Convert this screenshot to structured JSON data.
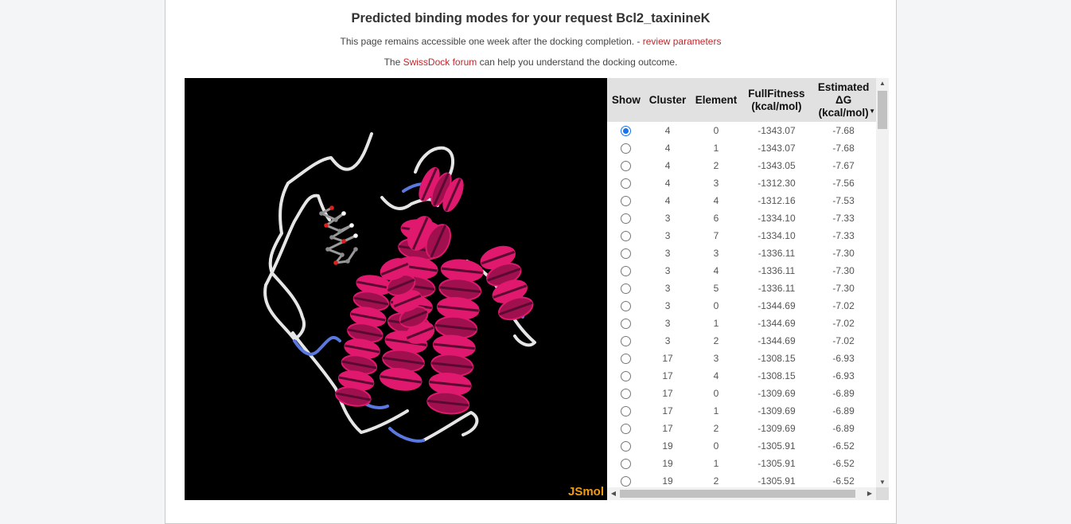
{
  "title": "Predicted binding modes for your request Bcl2_taxinineK",
  "info_line": {
    "text": "This page remains accessible one week after the docking completion. - ",
    "link": "review parameters"
  },
  "forum_line": {
    "prefix": "The ",
    "link": "SwissDock forum",
    "suffix": " can help you understand the docking outcome."
  },
  "viewer": {
    "label": "JSmol"
  },
  "table": {
    "headers": {
      "show": "Show",
      "cluster": "Cluster",
      "element": "Element",
      "fitness_line1": "FullFitness",
      "fitness_line2": "(kcal/mol)",
      "dg_line1": "Estimated",
      "dg_line2": "ΔG",
      "dg_line3": "(kcal/mol)"
    },
    "sort_indicator": "descending",
    "rows": [
      {
        "selected": true,
        "cluster": "4",
        "element": "0",
        "fitness": "-1343.07",
        "dg": "-7.68"
      },
      {
        "selected": false,
        "cluster": "4",
        "element": "1",
        "fitness": "-1343.07",
        "dg": "-7.68"
      },
      {
        "selected": false,
        "cluster": "4",
        "element": "2",
        "fitness": "-1343.05",
        "dg": "-7.67"
      },
      {
        "selected": false,
        "cluster": "4",
        "element": "3",
        "fitness": "-1312.30",
        "dg": "-7.56"
      },
      {
        "selected": false,
        "cluster": "4",
        "element": "4",
        "fitness": "-1312.16",
        "dg": "-7.53"
      },
      {
        "selected": false,
        "cluster": "3",
        "element": "6",
        "fitness": "-1334.10",
        "dg": "-7.33"
      },
      {
        "selected": false,
        "cluster": "3",
        "element": "7",
        "fitness": "-1334.10",
        "dg": "-7.33"
      },
      {
        "selected": false,
        "cluster": "3",
        "element": "3",
        "fitness": "-1336.11",
        "dg": "-7.30"
      },
      {
        "selected": false,
        "cluster": "3",
        "element": "4",
        "fitness": "-1336.11",
        "dg": "-7.30"
      },
      {
        "selected": false,
        "cluster": "3",
        "element": "5",
        "fitness": "-1336.11",
        "dg": "-7.30"
      },
      {
        "selected": false,
        "cluster": "3",
        "element": "0",
        "fitness": "-1344.69",
        "dg": "-7.02"
      },
      {
        "selected": false,
        "cluster": "3",
        "element": "1",
        "fitness": "-1344.69",
        "dg": "-7.02"
      },
      {
        "selected": false,
        "cluster": "3",
        "element": "2",
        "fitness": "-1344.69",
        "dg": "-7.02"
      },
      {
        "selected": false,
        "cluster": "17",
        "element": "3",
        "fitness": "-1308.15",
        "dg": "-6.93"
      },
      {
        "selected": false,
        "cluster": "17",
        "element": "4",
        "fitness": "-1308.15",
        "dg": "-6.93"
      },
      {
        "selected": false,
        "cluster": "17",
        "element": "0",
        "fitness": "-1309.69",
        "dg": "-6.89"
      },
      {
        "selected": false,
        "cluster": "17",
        "element": "1",
        "fitness": "-1309.69",
        "dg": "-6.89"
      },
      {
        "selected": false,
        "cluster": "17",
        "element": "2",
        "fitness": "-1309.69",
        "dg": "-6.89"
      },
      {
        "selected": false,
        "cluster": "19",
        "element": "0",
        "fitness": "-1305.91",
        "dg": "-6.52"
      },
      {
        "selected": false,
        "cluster": "19",
        "element": "1",
        "fitness": "-1305.91",
        "dg": "-6.52"
      },
      {
        "selected": false,
        "cluster": "19",
        "element": "2",
        "fitness": "-1305.91",
        "dg": "-6.52"
      }
    ]
  },
  "colors": {
    "accent_link": "#c0282d",
    "helix": "#e0196e",
    "helix_dark": "#a0104f",
    "coil": "#e6e6e6",
    "strand": "#5a78e0",
    "viewer_bg": "#000000",
    "jsmol_label": "#f39c12",
    "radio_selected": "#1a73e8"
  }
}
